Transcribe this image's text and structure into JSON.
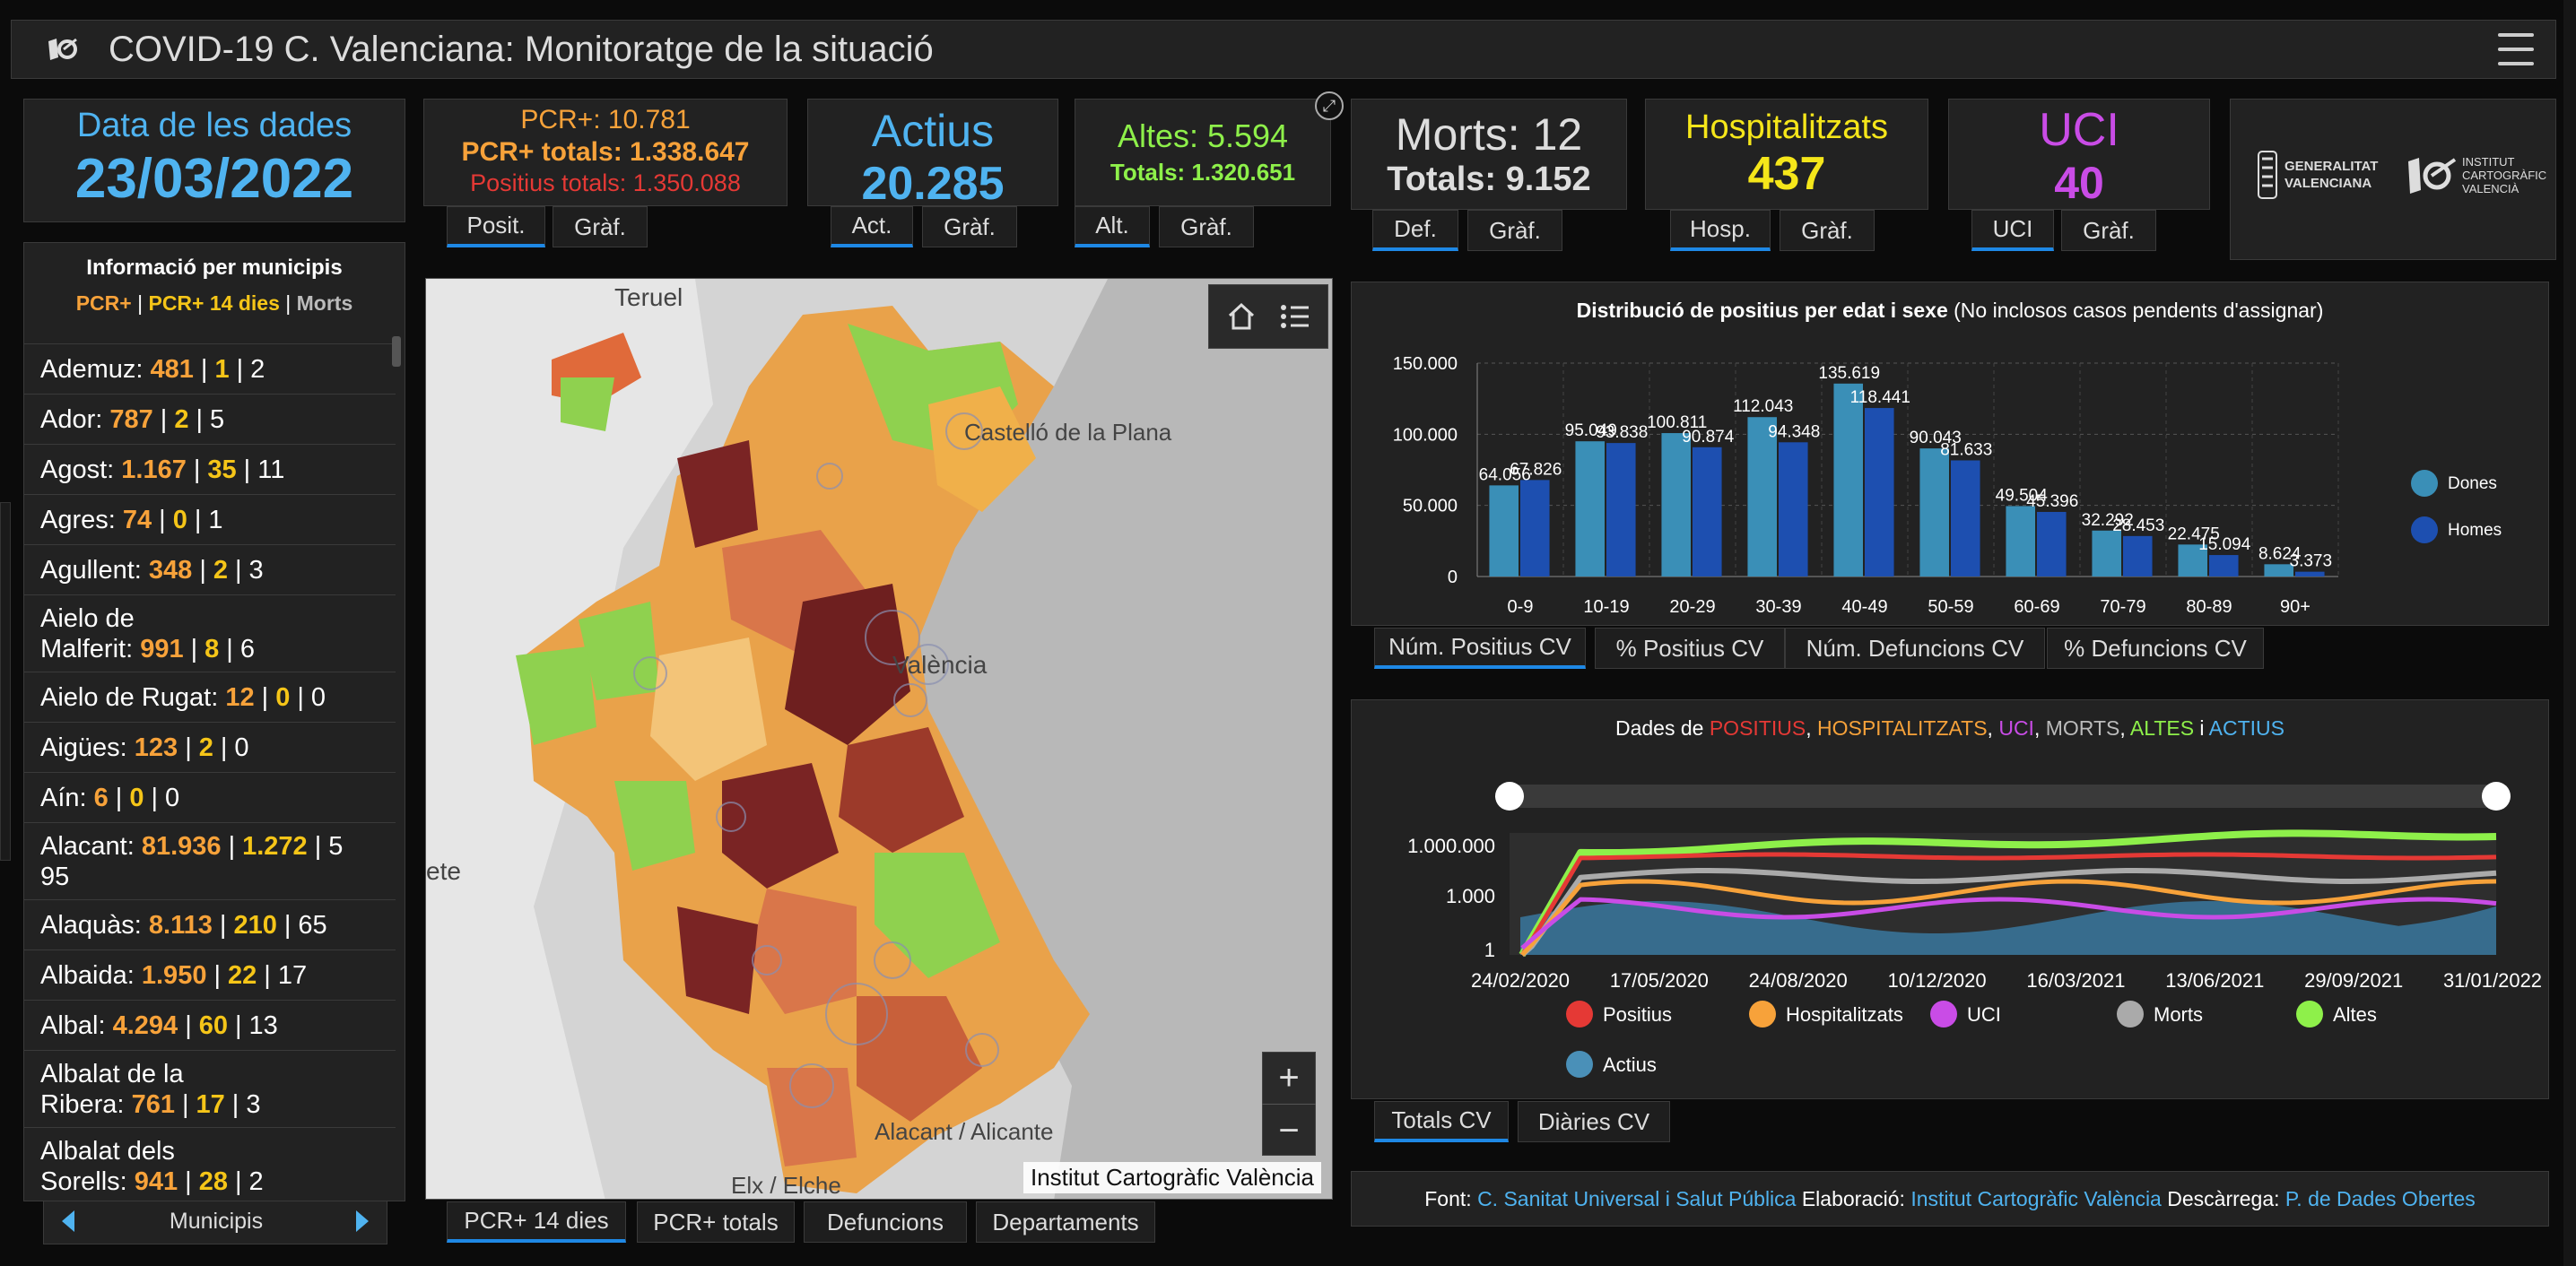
{
  "header": {
    "title": "COVID-19 C. Valenciana: Monitoratge de la situació"
  },
  "date_box": {
    "label": "Data de les dades",
    "value": "23/03/2022"
  },
  "pcr_box": {
    "line1": "PCR+: 10.781",
    "line2": "PCR+ totals: 1.338.647",
    "line3": "Positius totals: 1.350.088",
    "tabs": [
      "Posit.",
      "Gràf."
    ]
  },
  "actius_box": {
    "label": "Actius",
    "value": "20.285",
    "tabs": [
      "Act.",
      "Gràf."
    ]
  },
  "altes_box": {
    "line1": "Altes: 5.594",
    "line2": "Totals: 1.320.651",
    "tabs": [
      "Alt.",
      "Gràf."
    ]
  },
  "morts_box": {
    "line1": "Morts: 12",
    "line2": "Totals: 9.152",
    "tabs": [
      "Def.",
      "Gràf."
    ]
  },
  "hosp_box": {
    "label": "Hospitalitzats",
    "value": "437",
    "tabs": [
      "Hosp.",
      "Gràf."
    ]
  },
  "uci_box": {
    "label": "UCI",
    "value": "40",
    "tabs": [
      "UCI",
      "Gràf."
    ]
  },
  "logos": {
    "gva": "GENERALITAT VALENCIANA",
    "icv": "INSTITUT CARTOGRÀFIC VALENCIÀ"
  },
  "municipis": {
    "title": "Informació per municipis",
    "legend": {
      "a": "PCR+",
      "b": "PCR+ 14 dies",
      "c": "Morts"
    },
    "rows": [
      {
        "name": "Ademuz:",
        "a": "481",
        "b": "1",
        "c": "2"
      },
      {
        "name": "Ador:",
        "a": "787",
        "b": "2",
        "c": "5"
      },
      {
        "name": "Agost:",
        "a": "1.167",
        "b": "35",
        "c": "11"
      },
      {
        "name": "Agres:",
        "a": "74",
        "b": "0",
        "c": "1"
      },
      {
        "name": "Agullent:",
        "a": "348",
        "b": "2",
        "c": "3"
      },
      {
        "name": "Aielo de",
        "name2": "Malferit:",
        "a": "991",
        "b": "8",
        "c": "6"
      },
      {
        "name": "Aielo de Rugat:",
        "a": "12",
        "b": "0",
        "c": "0"
      },
      {
        "name": "Aigües:",
        "a": "123",
        "b": "2",
        "c": "0"
      },
      {
        "name": "Aín:",
        "a": "6",
        "b": "0",
        "c": "0"
      },
      {
        "name": "Alacant:",
        "a": "81.936",
        "b": "1.272",
        "c": "5",
        "c2": "95"
      },
      {
        "name": "Alaquàs:",
        "a": "8.113",
        "b": "210",
        "c": "65"
      },
      {
        "name": "Albaida:",
        "a": "1.950",
        "b": "22",
        "c": "17"
      },
      {
        "name": "Albal:",
        "a": "4.294",
        "b": "60",
        "c": "13"
      },
      {
        "name": "Albalat de la",
        "name2": "Ribera:",
        "a": "761",
        "b": "17",
        "c": "3"
      },
      {
        "name": "Albalat dels",
        "name2": "Sorells:",
        "a": "941",
        "b": "28",
        "c": "2"
      }
    ],
    "nav_label": "Municipis"
  },
  "map": {
    "labels": [
      "Teruel",
      "Castelló de la Plana",
      "València",
      "Alacant / Alicante",
      "Elx / Elche",
      "ete"
    ],
    "attribution": "Institut Cartogràfic València",
    "zoom_in": "+",
    "zoom_out": "−",
    "tabs": [
      "PCR+ 14 dies",
      "PCR+ totals",
      "Defuncions",
      "Departaments"
    ]
  },
  "bar_chart_tabs": [
    "Núm. Positius CV",
    "% Positius CV",
    "Núm. Defuncions CV",
    "% Defuncions CV"
  ],
  "line_chart_tabs": [
    "Totals CV",
    "Diàries CV"
  ],
  "line_chart": {
    "title_prefix": "Dades de",
    "parts": [
      {
        "text": "POSITIUS",
        "color": "#e53935"
      },
      {
        "text": "HOSPITALITZATS",
        "color": "#f7a23a"
      },
      {
        "text": "UCI",
        "color": "#c94ce6"
      },
      {
        "text": "MORTS",
        "color": "#bbbbbb"
      },
      {
        "text": "ALTES",
        "color": "#8ef04a"
      },
      {
        "text": "ACTIUS",
        "color": "#4fb3f0"
      }
    ],
    "y_ticks": [
      "1.000.000",
      "1.000",
      "1"
    ],
    "x_ticks": [
      "24/02/2020",
      "17/05/2020",
      "24/08/2020",
      "10/12/2020",
      "16/03/2021",
      "13/06/2021",
      "29/09/2021",
      "31/01/2022"
    ],
    "legend": [
      {
        "name": "Positius",
        "color": "#e53935"
      },
      {
        "name": "Hospitalitzats",
        "color": "#f7a23a"
      },
      {
        "name": "UCI",
        "color": "#c94ce6"
      },
      {
        "name": "Morts",
        "color": "#aaaaaa"
      },
      {
        "name": "Altes",
        "color": "#8ef04a"
      },
      {
        "name": "Actius",
        "color": "#4a90b8"
      }
    ]
  },
  "footer": {
    "font_label": "Font:",
    "font_value": "C. Sanitat Universal i Salut Pública",
    "elab_label": "Elaboració:",
    "elab_value": "Institut Cartogràfic València",
    "desc_label": "Descàrrega:",
    "desc_value": "P. de Dades Obertes"
  },
  "chart_data": {
    "type": "bar",
    "title": "Distribució de positius per edat i sexe",
    "subtitle": "(No inclosos casos pendents d'assignar)",
    "categories": [
      "0-9",
      "10-19",
      "20-29",
      "30-39",
      "40-49",
      "50-59",
      "60-69",
      "70-79",
      "80-89",
      "90+"
    ],
    "series": [
      {
        "name": "Dones",
        "color": "#3a8fb7",
        "values": [
          64056,
          95049,
          100811,
          112043,
          135619,
          90043,
          49504,
          32292,
          22475,
          8624
        ],
        "labels": [
          "64.056",
          "95.049",
          "100.811",
          "112.043",
          "135.619",
          "90.043",
          "49.504",
          "32.292",
          "22.475",
          "8.624"
        ]
      },
      {
        "name": "Homes",
        "color": "#1d4fb0",
        "values": [
          67826,
          93838,
          90874,
          94348,
          118441,
          81633,
          45396,
          28453,
          15094,
          3373
        ],
        "labels": [
          "67.826",
          "93.838",
          "90.874",
          "94.348",
          "118.441",
          "81.633",
          "45.396",
          "28.453",
          "15.094",
          "3.373"
        ]
      }
    ],
    "y_ticks": [
      0,
      50000,
      100000,
      150000
    ],
    "y_tick_labels": [
      "0",
      "50.000",
      "100.000",
      "150.000"
    ],
    "ylim": [
      0,
      150000
    ],
    "grid": true,
    "legend": "right"
  }
}
